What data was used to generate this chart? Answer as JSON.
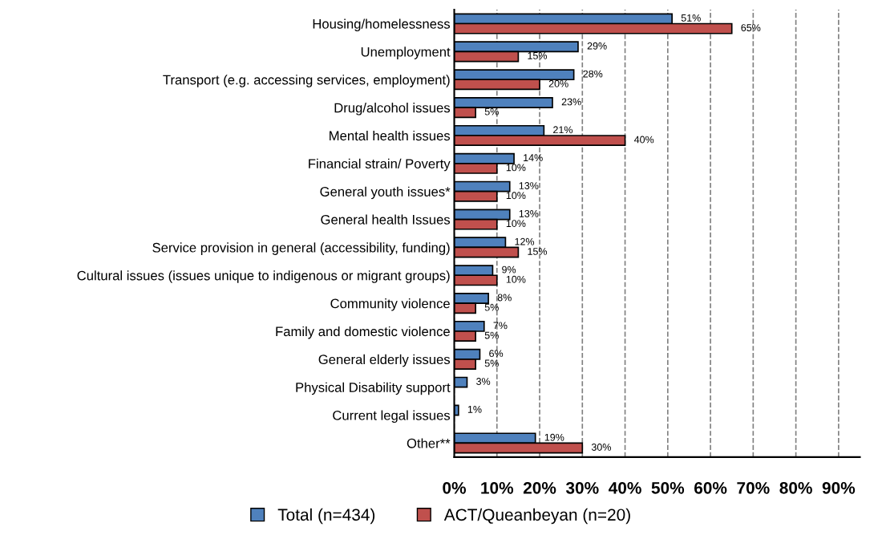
{
  "chart_data": {
    "type": "bar",
    "orientation": "horizontal",
    "categories": [
      "Housing/homelessness",
      "Unemployment",
      "Transport (e.g. accessing services, employment)",
      "Drug/alcohol issues",
      "Mental health issues",
      "Financial strain/ Poverty",
      "General youth issues*",
      "General health Issues",
      "Service provision in general (accessibility, funding)",
      "Cultural issues (issues unique to indigenous or migrant groups)",
      "Community violence",
      "Family and domestic violence",
      "General elderly issues",
      "Physical Disability support",
      "Current legal issues",
      "Other**"
    ],
    "series": [
      {
        "name": "Total (n=434)",
        "color": "#4f81bd",
        "values": [
          51,
          29,
          28,
          23,
          21,
          14,
          13,
          13,
          12,
          9,
          8,
          7,
          6,
          3,
          1,
          19
        ],
        "value_labels": [
          "51%",
          "29%",
          "28%",
          "23%",
          "21%",
          "14%",
          "13%",
          "13%",
          "12%",
          "9%",
          "8%",
          "7%",
          "6%",
          "3%",
          "1%",
          "19%"
        ]
      },
      {
        "name": "ACT/Queanbeyan (n=20)",
        "color": "#c0504d",
        "values": [
          65,
          15,
          20,
          5,
          40,
          10,
          10,
          10,
          15,
          10,
          5,
          5,
          5,
          null,
          null,
          30
        ],
        "value_labels": [
          "65%",
          "15%",
          "20%",
          "5%",
          "40%",
          "10%",
          "10%",
          "10%",
          "15%",
          "10%",
          "5%",
          "5%",
          "5%",
          null,
          null,
          "30%"
        ]
      }
    ],
    "xlim": [
      0,
      95
    ],
    "xticks": [
      {
        "value": 0,
        "label": "0%"
      },
      {
        "value": 10,
        "label": "10%"
      },
      {
        "value": 20,
        "label": "20%"
      },
      {
        "value": 30,
        "label": "30%"
      },
      {
        "value": 40,
        "label": "40%"
      },
      {
        "value": 50,
        "label": "50%"
      },
      {
        "value": 60,
        "label": "60%"
      },
      {
        "value": 70,
        "label": "70%"
      },
      {
        "value": 80,
        "label": "80%"
      },
      {
        "value": 90,
        "label": "90%"
      }
    ],
    "grid": "x",
    "legend": "bottom"
  }
}
